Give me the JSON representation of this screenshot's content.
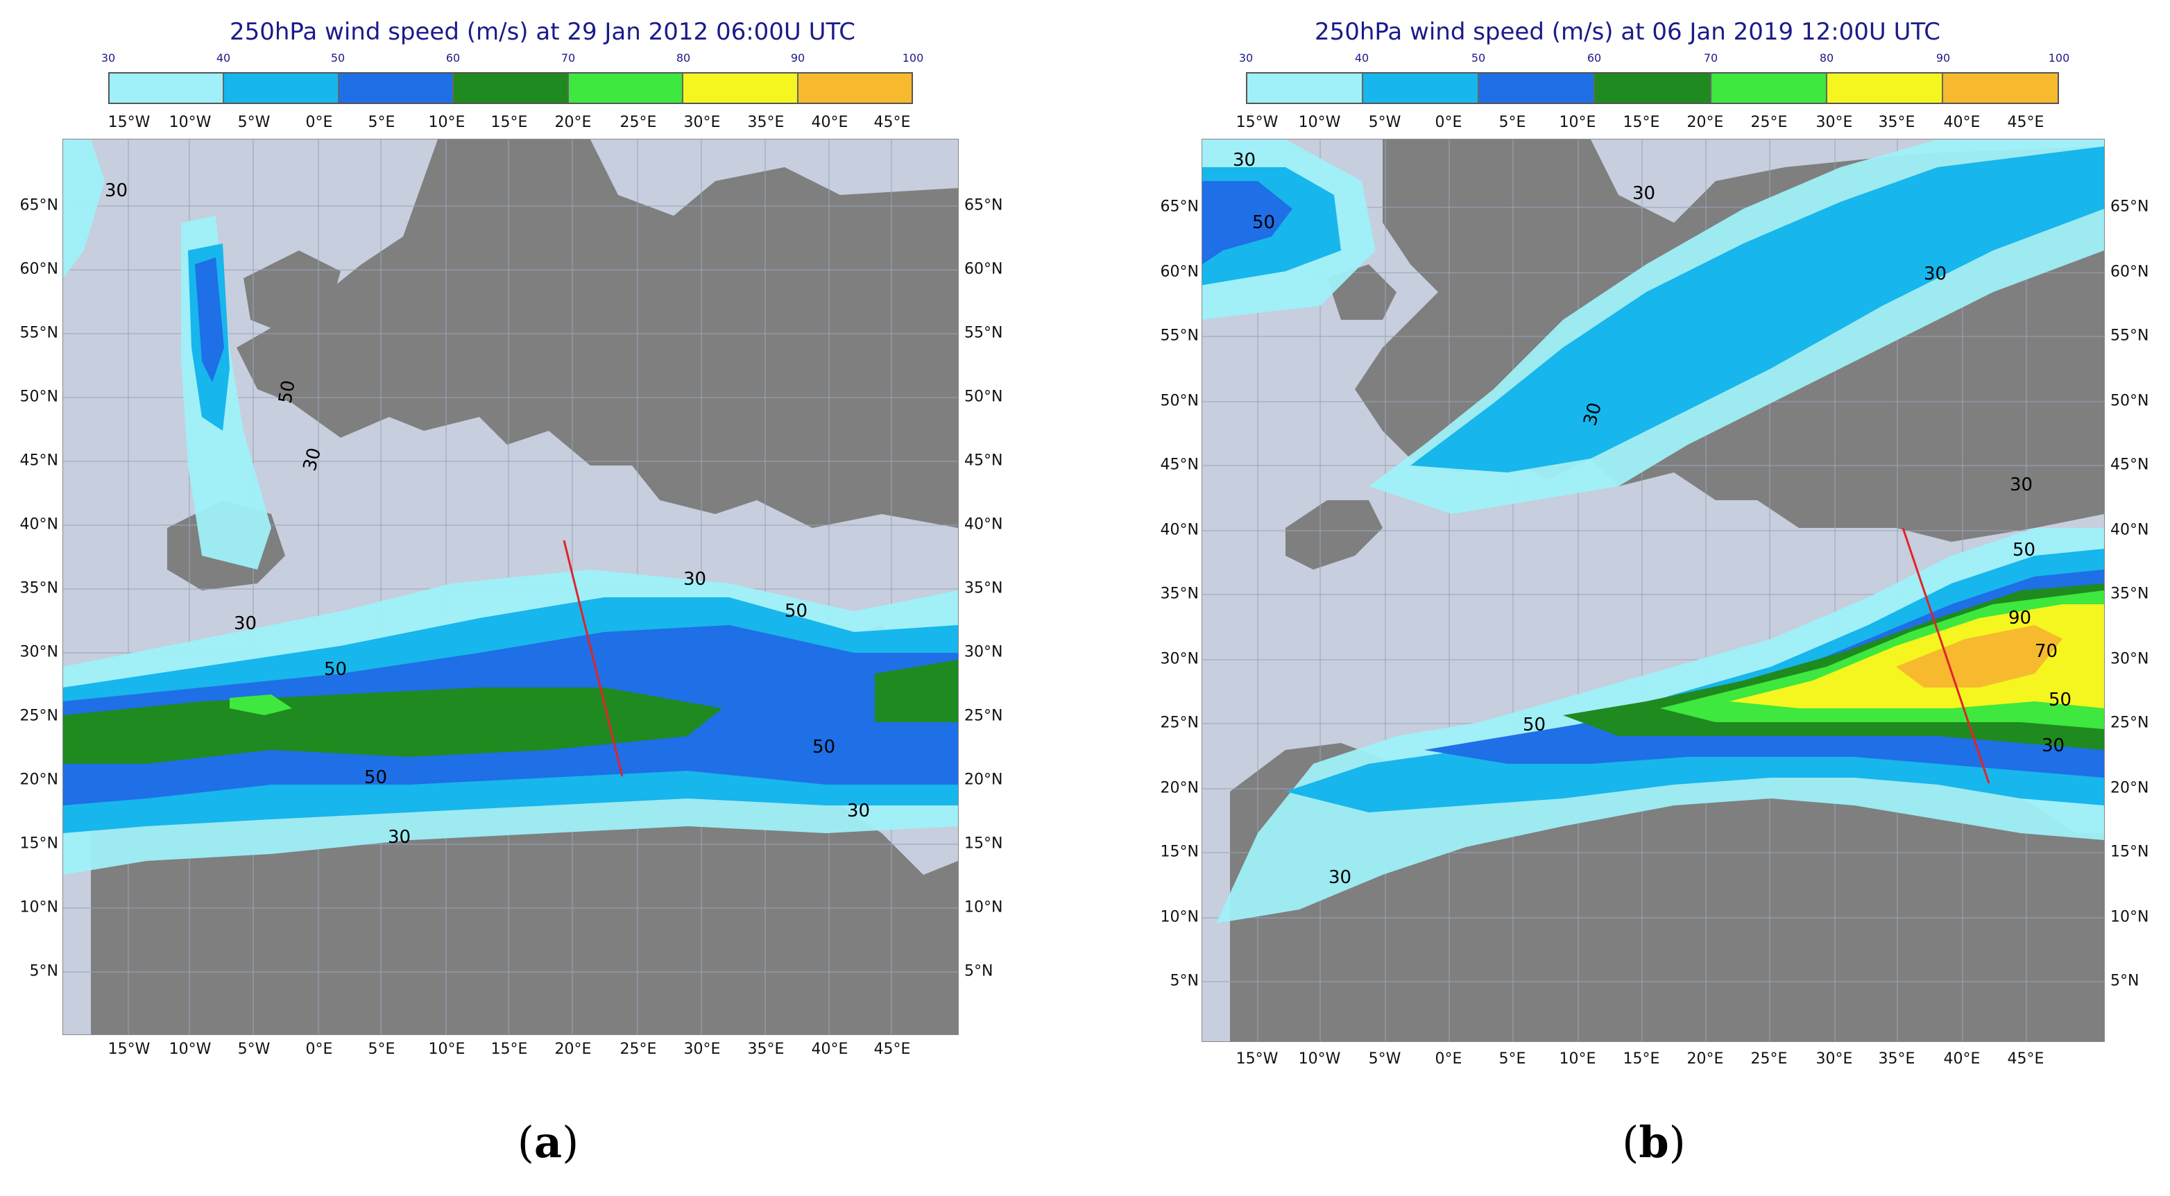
{
  "panels": [
    {
      "id": "a",
      "title": "250hPa wind speed (m/s) at 29 Jan 2012 06:00U UTC",
      "caption_letter": "a",
      "colorbar": {
        "ticks": [
          "30",
          "40",
          "50",
          "60",
          "70",
          "80",
          "90",
          "100"
        ],
        "colors": [
          "#9ff0f8",
          "#17b6ec",
          "#1f6fe6",
          "#1f8a1f",
          "#3ee83e",
          "#f5f51f",
          "#f7b92e"
        ]
      },
      "lon_labels": [
        "15°W",
        "10°W",
        "5°W",
        "0°E",
        "5°E",
        "10°E",
        "15°E",
        "20°E",
        "25°E",
        "30°E",
        "35°E",
        "40°E",
        "45°E"
      ],
      "lat_labels": [
        "65°N",
        "60°N",
        "55°N",
        "50°N",
        "45°N",
        "40°N",
        "35°N",
        "30°N",
        "25°N",
        "20°N",
        "15°N",
        "10°N",
        "5°N"
      ],
      "contour_labels": [
        "30",
        "50",
        "30",
        "30",
        "30",
        "50",
        "50",
        "50",
        "50",
        "30",
        "30"
      ]
    },
    {
      "id": "b",
      "title": "250hPa wind speed (m/s) at 06 Jan 2019 12:00U UTC",
      "caption_letter": "b",
      "colorbar": {
        "ticks": [
          "30",
          "40",
          "50",
          "60",
          "70",
          "80",
          "90",
          "100"
        ],
        "colors": [
          "#9ff0f8",
          "#17b6ec",
          "#1f6fe6",
          "#1f8a1f",
          "#3ee83e",
          "#f5f51f",
          "#f7b92e"
        ]
      },
      "lon_labels": [
        "15°W",
        "10°W",
        "5°W",
        "0°E",
        "5°E",
        "10°E",
        "15°E",
        "20°E",
        "25°E",
        "30°E",
        "35°E",
        "40°E",
        "45°E"
      ],
      "lat_labels": [
        "65°N",
        "60°N",
        "55°N",
        "50°N",
        "45°N",
        "40°N",
        "35°N",
        "30°N",
        "25°N",
        "20°N",
        "15°N",
        "10°N",
        "5°N"
      ],
      "contour_labels": [
        "30",
        "50",
        "30",
        "30",
        "30",
        "30",
        "50",
        "90",
        "70",
        "50",
        "50",
        "30",
        "30"
      ]
    }
  ]
}
